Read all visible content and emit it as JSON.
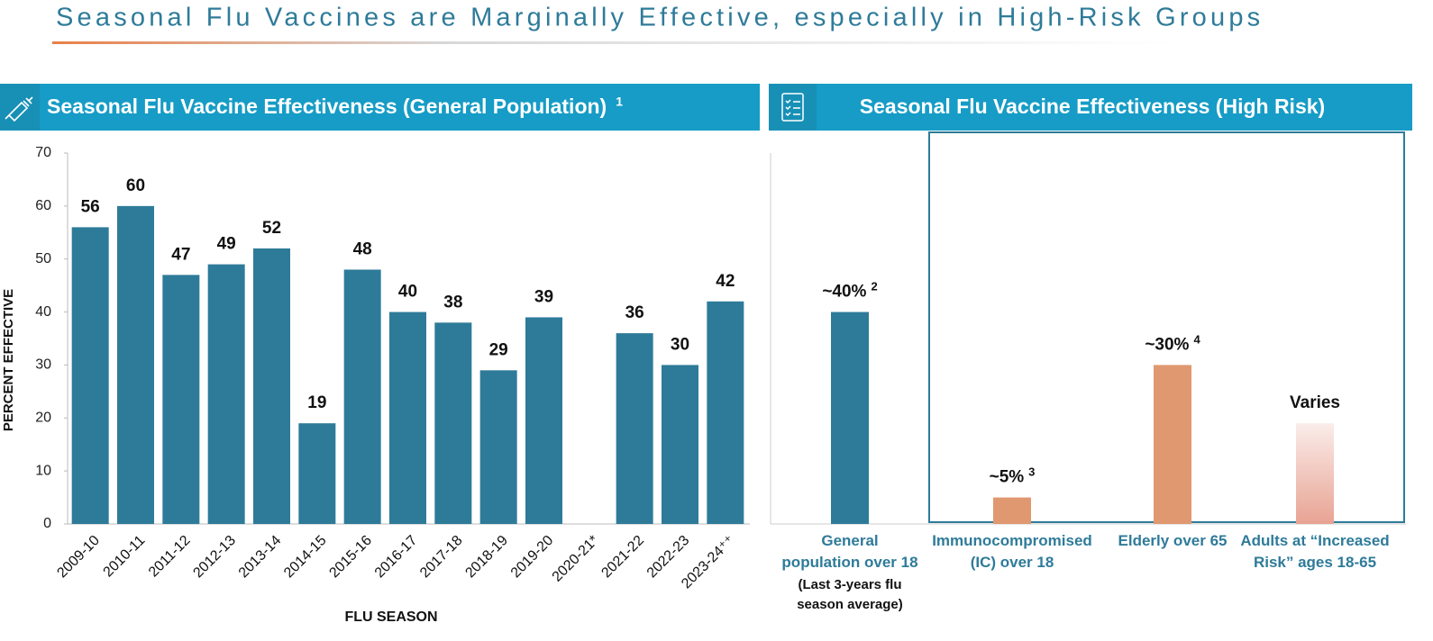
{
  "page_title": "Seasonal Flu Vaccines are Marginally Effective, especially in High-Risk Groups",
  "chart_data": [
    {
      "type": "bar",
      "title": "Seasonal Flu Vaccine Effectiveness (General Population)",
      "title_note": "1",
      "x_label": "FLU SEASON",
      "y_label": "PERCENT EFFECTIVE",
      "categories": [
        "2009-10",
        "2010-11",
        "2011-12",
        "2012-13",
        "2013-14",
        "2014-15",
        "2015-16",
        "2016-17",
        "2017-18",
        "2018-19",
        "2019-20",
        "2020-21*",
        "2021-22",
        "2022-23",
        "2023-24⁺⁺"
      ],
      "values": [
        56,
        60,
        47,
        49,
        52,
        19,
        48,
        40,
        38,
        29,
        39,
        null,
        36,
        30,
        42
      ],
      "color": "#2e7b99",
      "ylim": [
        0,
        70
      ],
      "yticks": [
        0,
        10,
        20,
        30,
        40,
        50,
        60,
        70
      ],
      "grid": false
    },
    {
      "type": "bar",
      "title": "Seasonal Flu Vaccine Effectiveness (High Risk)",
      "categories": [
        "General\npopulation over 18",
        "Immunocompromised\n(IC) over 18",
        "Elderly over 65",
        "Adults at “Increased\nRisk” ages 18-65"
      ],
      "category_notes": [
        "(Last 3-years flu\nseason average)",
        null,
        null,
        null
      ],
      "values": [
        40,
        5,
        30,
        19
      ],
      "value_labels": [
        "~40%",
        "~5%",
        "~30%",
        "Varies"
      ],
      "value_label_notes": [
        "2",
        "3",
        "4",
        null
      ],
      "colors": [
        "#2e7b99",
        "#e09870",
        "#e09870",
        "#e8a393"
      ],
      "gradient": [
        false,
        false,
        false,
        true
      ],
      "ylim": [
        0,
        70
      ]
    }
  ]
}
